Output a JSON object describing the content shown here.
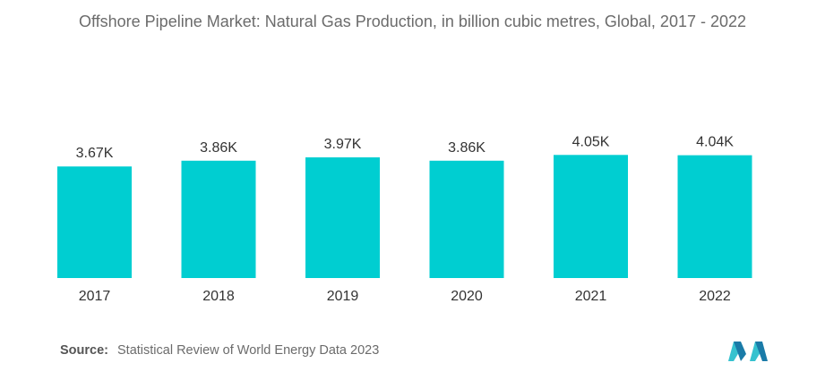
{
  "chart_data": {
    "type": "bar",
    "title": "Offshore Pipeline Market: Natural Gas Production, in billion cubic metres, Global, 2017 - 2022",
    "categories": [
      "2017",
      "2018",
      "2019",
      "2020",
      "2021",
      "2022"
    ],
    "values": [
      3670,
      3860,
      3970,
      3860,
      4050,
      4040
    ],
    "data_labels": [
      "3.67K",
      "3.86K",
      "3.97K",
      "3.86K",
      "4.05K",
      "4.04K"
    ],
    "xlabel": "",
    "ylabel": "",
    "grid": false,
    "legend": "none",
    "bar_color": "#00CED1"
  },
  "source": {
    "label": "Source:",
    "text": "Statistical Review of World Energy Data 2023"
  },
  "logo": {
    "name": "mordor-intelligence-logo",
    "colors": [
      "#1A7BA8",
      "#36C2CF"
    ]
  }
}
